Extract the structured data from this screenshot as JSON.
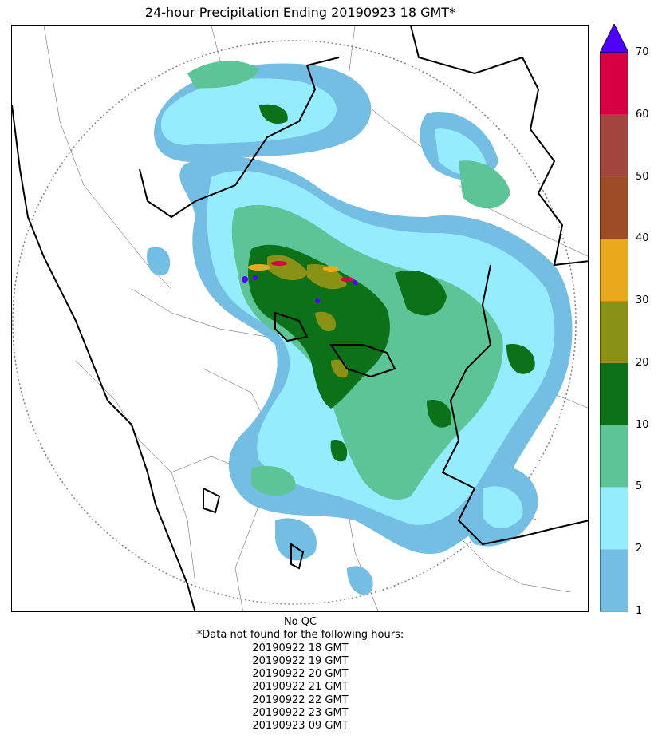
{
  "title": "24-hour Precipitation Ending 20190923 18 GMT*",
  "colorbar": {
    "levels": [
      "1",
      "2",
      "5",
      "10",
      "20",
      "30",
      "40",
      "50",
      "60",
      "70"
    ],
    "colors": [
      "#74bde3",
      "#96ecff",
      "#5cc497",
      "#0d7119",
      "#899214",
      "#e6aa1c",
      "#9c4c26",
      "#a2473f",
      "#d60043"
    ],
    "extend_color": "#5000ff"
  },
  "footer": {
    "qc": "No QC",
    "missing_header": "*Data not found for the following hours:",
    "missing_hours": [
      "20190922 18 GMT",
      "20190922 19 GMT",
      "20190922 20 GMT",
      "20190922 21 GMT",
      "20190922 22 GMT",
      "20190922 23 GMT",
      "20190923 09 GMT"
    ]
  }
}
